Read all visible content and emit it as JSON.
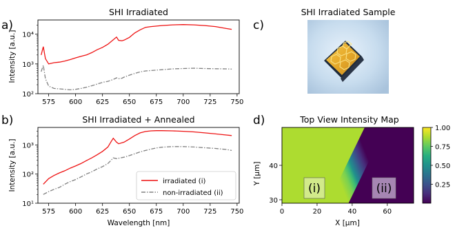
{
  "figure": {
    "panel_letters": [
      "a)",
      "b)",
      "c)",
      "d)"
    ]
  },
  "chart_data": [
    {
      "panel": "a)",
      "type": "line",
      "title": "SHI Irradiated",
      "xlabel": "",
      "ylabel": "Intensity [a.u.]",
      "xlim": [
        565,
        752
      ],
      "ylim": [
        100,
        30000
      ],
      "yscale": "log",
      "xticks": [
        575,
        600,
        625,
        650,
        675,
        700,
        725,
        750
      ],
      "yticks": [
        {
          "value": 100,
          "label": "10²"
        },
        {
          "value": 1000,
          "label": "10³"
        },
        {
          "value": 10000,
          "label": "10⁴"
        }
      ],
      "x": [
        568,
        570,
        572,
        575,
        580,
        585,
        590,
        595,
        600,
        605,
        610,
        615,
        620,
        625,
        630,
        635,
        638,
        640,
        643,
        645,
        650,
        655,
        660,
        665,
        670,
        680,
        690,
        700,
        710,
        720,
        730,
        740,
        745
      ],
      "series": [
        {
          "name": "irradiated (i)",
          "color": "#ee1111",
          "style": "solid",
          "values": [
            2000,
            3800,
            1500,
            1000,
            1100,
            1150,
            1250,
            1400,
            1600,
            1800,
            2000,
            2400,
            3000,
            3600,
            4600,
            6500,
            8000,
            6200,
            6000,
            6300,
            7800,
            11000,
            14000,
            17000,
            18000,
            19500,
            20500,
            21000,
            20500,
            19500,
            18000,
            15500,
            14500
          ]
        },
        {
          "name": "non-irradiated (ii)",
          "color": "#808080",
          "style": "dashdot",
          "values": [
            550,
            900,
            320,
            180,
            150,
            145,
            140,
            135,
            140,
            150,
            165,
            185,
            210,
            240,
            260,
            300,
            340,
            320,
            330,
            360,
            420,
            480,
            540,
            580,
            600,
            640,
            680,
            700,
            720,
            700,
            690,
            680,
            670
          ]
        }
      ],
      "legend": null,
      "grid": false
    },
    {
      "panel": "b)",
      "type": "line",
      "title": "SHI Irradiated + Annealed",
      "xlabel": "Wavelength [nm]",
      "ylabel": "Intensity [a.u.]",
      "xlim": [
        565,
        752
      ],
      "ylim": [
        10,
        4000
      ],
      "yscale": "log",
      "xticks": [
        575,
        600,
        625,
        650,
        675,
        700,
        725,
        750
      ],
      "yticks": [
        {
          "value": 10,
          "label": "10¹"
        },
        {
          "value": 100,
          "label": "10²"
        },
        {
          "value": 1000,
          "label": "10³"
        }
      ],
      "x": [
        570,
        575,
        580,
        585,
        590,
        595,
        600,
        605,
        610,
        615,
        620,
        625,
        630,
        633,
        635,
        638,
        640,
        645,
        650,
        655,
        660,
        665,
        670,
        675,
        680,
        690,
        700,
        710,
        720,
        730,
        740,
        745
      ],
      "series": [
        {
          "name": "irradiated (i)",
          "color": "#ee1111",
          "style": "solid",
          "values": [
            45,
            70,
            90,
            110,
            130,
            160,
            190,
            230,
            290,
            360,
            460,
            600,
            850,
            1300,
            1700,
            1250,
            1100,
            1250,
            1600,
            2100,
            2600,
            2900,
            3050,
            3100,
            3100,
            3050,
            2950,
            2800,
            2600,
            2400,
            2200,
            2100
          ]
        },
        {
          "name": "non-irradiated (ii)",
          "color": "#808080",
          "style": "dashdot",
          "values": [
            20,
            25,
            30,
            35,
            45,
            55,
            65,
            80,
            100,
            120,
            150,
            180,
            230,
            300,
            360,
            340,
            350,
            380,
            430,
            500,
            580,
            650,
            720,
            790,
            840,
            880,
            880,
            850,
            800,
            760,
            700,
            650
          ]
        }
      ],
      "legend": {
        "position": "lower-right",
        "entries": [
          "irradiated (i)",
          "non-irradiated (ii)"
        ]
      },
      "grid": false
    },
    {
      "panel": "d)",
      "type": "heatmap",
      "title": "Top View Intensity Map",
      "xlabel": "X [μm]",
      "ylabel": "Y [μm]",
      "xlim": [
        0,
        75
      ],
      "ylim": [
        29,
        51
      ],
      "xticks": [
        0,
        20,
        40,
        60
      ],
      "yticks": [
        30,
        40
      ],
      "colormap": "viridis",
      "colorbar": {
        "min": 0.0,
        "max": 1.0,
        "ticks": [
          "0.25",
          "0.50",
          "0.75",
          "1.00"
        ]
      },
      "boundary": {
        "x_at_y_min": 32,
        "x_at_y_max": 53
      },
      "left_value": 0.82,
      "right_value": 0.03,
      "regions": [
        {
          "label": "(i)",
          "x": 17,
          "y": 40
        },
        {
          "label": "(ii)",
          "x": 58,
          "y": 40
        }
      ]
    }
  ],
  "photo": {
    "panel": "c)",
    "title": "SHI Irradiated Sample"
  }
}
